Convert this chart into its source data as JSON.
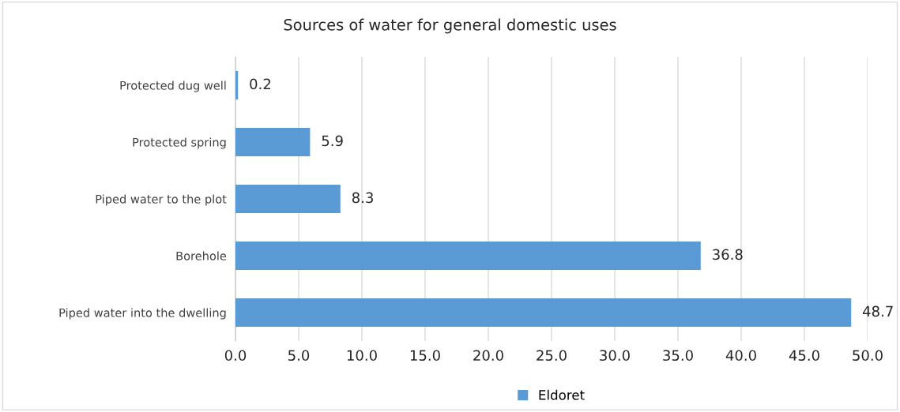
{
  "chart_data": {
    "type": "bar",
    "orientation": "horizontal",
    "title": "Sources of water for general domestic uses",
    "categories": [
      "Protected dug well",
      "Protected spring",
      "Piped water to the plot",
      "Borehole",
      "Piped water into the dwelling"
    ],
    "series": [
      {
        "name": "Eldoret",
        "color": "#5b9bd5",
        "values": [
          0.2,
          5.9,
          8.3,
          36.8,
          48.7
        ]
      }
    ],
    "xlim": [
      0,
      50
    ],
    "xticks": [
      {
        "value": 0,
        "label": "0.0"
      },
      {
        "value": 5,
        "label": "5.0"
      },
      {
        "value": 10,
        "label": "10.0"
      },
      {
        "value": 15,
        "label": "15.0"
      },
      {
        "value": 20,
        "label": "20.0"
      },
      {
        "value": 25,
        "label": "25.0"
      },
      {
        "value": 30,
        "label": "30.0"
      },
      {
        "value": 35,
        "label": "35.0"
      },
      {
        "value": 40,
        "label": "40.0"
      },
      {
        "value": 45,
        "label": "45.0"
      },
      {
        "value": 50,
        "label": "50.0"
      }
    ],
    "grid": "x",
    "legend": "bottom",
    "data_labels": true
  }
}
